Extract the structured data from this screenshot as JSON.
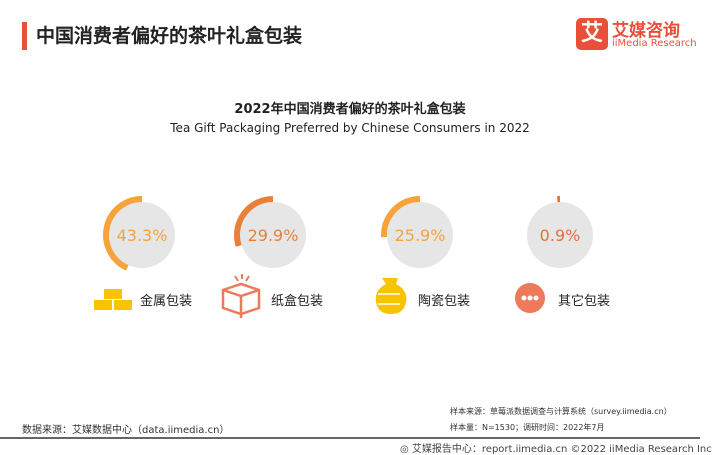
{
  "header": {
    "title": "中国消费者偏好的茶叶礼盒包装"
  },
  "logo": {
    "mark": "艾",
    "cn": "艾媒咨询",
    "en": "iiMedia Research"
  },
  "chart_data": {
    "type": "pie",
    "title": "2022年中国消费者偏好的茶叶礼盒包装",
    "subtitle": "Tea Gift Packaging Preferred by Chinese Consumers in 2022",
    "categories": [
      "金属包装",
      "纸盒包装",
      "陶瓷包装",
      "其它包装"
    ],
    "values": [
      43.3,
      29.9,
      25.9,
      0.9
    ],
    "labels": [
      "43.3%",
      "29.9%",
      "25.9%",
      "0.9%"
    ],
    "icons": [
      "gold-bars-icon",
      "paper-box-icon",
      "ceramic-pot-icon",
      "more-icon"
    ],
    "colors": [
      "#f5a33a",
      "#e8803a",
      "#f5a33a",
      "#e8703a"
    ]
  },
  "footer": {
    "source": "数据来源：艾媒数据中心（data.iimedia.cn）",
    "sample_source": "样本来源：草莓派数据调查与计算系统（survey.iimedia.cn）",
    "sample_size": "样本量：N=1530；调研时间：2022年7月",
    "copyright": "艾媒报告中心：report.iimedia.cn  ©2022  iiMedia Research  Inc"
  }
}
